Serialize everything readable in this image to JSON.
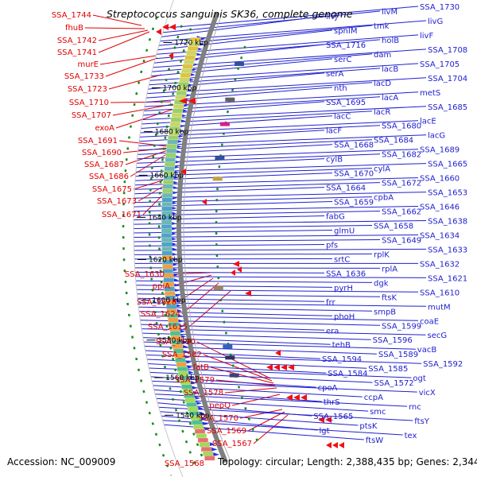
{
  "title": "Streptococcus sanguinis SK36, complete genome",
  "accession": "Accession: NC_009009",
  "summary": "Topology: circular; Length: 2,388,435 bp; Genes: 2,344",
  "colors": {
    "red": "#e00000",
    "blue": "#2020d0",
    "green": "#1a8a1a",
    "backbone": "#808080"
  },
  "kbp_ticks": [
    "1720 kbp",
    "1700 kbp",
    "1680 kbp",
    "1660 kbp",
    "1640 kbp",
    "1620 kbp",
    "1600 kbp",
    "1580 kbp",
    "1560 kbp",
    "1540 kbp"
  ],
  "left_labels": [
    "SSA_1744",
    "fhuB",
    "SSA_1742",
    "SSA_1741",
    "murE",
    "SSA_1733",
    "SSA_1723",
    "SSA_1710",
    "SSA_1707",
    "exoA",
    "SSA_1691",
    "SSA_1690",
    "SSA_1687",
    "SSA_1686",
    "SSA_1675",
    "SSA_1673",
    "SSA_1671",
    "SSA_1630",
    "ppiA",
    "SSA_1628",
    "SSA_1624",
    "SSA_1615",
    "SSA_1590",
    "SSA_1582",
    "fatB",
    "SSA_1579",
    "SSA_1578",
    "pepQ",
    "SSA_1570",
    "SSA_1569",
    "SSA_1567",
    "SSA_1568"
  ],
  "right_labels": [
    "SSA_1730",
    "livM",
    "livJ",
    "livG",
    "tmk",
    "spnIM",
    "livF",
    "holB",
    "SSA_1716",
    "SSA_1708",
    "dam",
    "serC",
    "SSA_1705",
    "lacB",
    "serA",
    "SSA_1704",
    "lacD",
    "nth",
    "metS",
    "lacA",
    "SSA_1695",
    "SSA_1685",
    "lacR",
    "lacC",
    "lacE",
    "SSA_1680",
    "lacF",
    "lacG",
    "SSA_1684",
    "SSA_1668",
    "SSA_1689",
    "SSA_1682",
    "cylB",
    "SSA_1665",
    "cylA",
    "SSA_1670",
    "SSA_1660",
    "SSA_1672",
    "SSA_1664",
    "SSA_1653",
    "cpbA",
    "SSA_1659",
    "SSA_1646",
    "SSA_1662",
    "fabG",
    "SSA_1638",
    "SSA_1658",
    "glmU",
    "SSA_1634",
    "SSA_1649",
    "pfs",
    "SSA_1633",
    "rplK",
    "srtC",
    "SSA_1632",
    "rplA",
    "SSA_1636",
    "SSA_1621",
    "dgk",
    "pyrH",
    "SSA_1610",
    "ftsK",
    "frr",
    "mutM",
    "smpB",
    "phoH",
    "coaE",
    "SSA_1599",
    "era",
    "secG",
    "SSA_1596",
    "tehB",
    "vacB",
    "SSA_1589",
    "SSA_1594",
    "SSA_1592",
    "SSA_1585",
    "SSA_1584",
    "ogt",
    "SSA_1572",
    "cpoA",
    "vicX",
    "ccpA",
    "thrS",
    "rnc",
    "smc",
    "SSA_1565",
    "ftsY",
    "ptsK",
    "lgt",
    "tex",
    "ftsW"
  ]
}
